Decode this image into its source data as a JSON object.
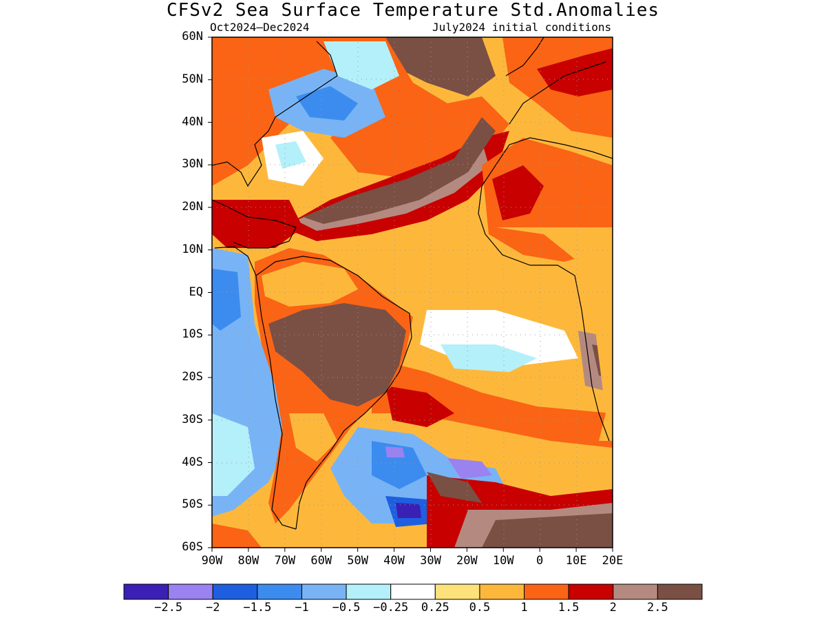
{
  "title": "CFSv2 Sea Surface Temperature Std.Anomalies",
  "subtitle_left": "Oct2024–Dec2024",
  "subtitle_right": "July2024 initial conditions",
  "lat_labels": [
    "60N",
    "50N",
    "40N",
    "30N",
    "20N",
    "10N",
    "EQ",
    "10S",
    "20S",
    "30S",
    "40S",
    "50S",
    "60S"
  ],
  "lon_labels": [
    "90W",
    "80W",
    "70W",
    "60W",
    "50W",
    "40W",
    "30W",
    "20W",
    "10W",
    "0",
    "10E",
    "20E"
  ],
  "colorbar": {
    "colors": [
      "#3a20b4",
      "#9a82f0",
      "#1e5fe0",
      "#3c8cf0",
      "#78b4f5",
      "#b4f0fa",
      "#ffffff",
      "#fde17a",
      "#fdb83c",
      "#fa6414",
      "#c80000",
      "#b48a80",
      "#7a4f44"
    ],
    "labels": [
      "−2.5",
      "−2",
      "−1.5",
      "−1",
      "−0.5",
      "−0.25",
      "0.25",
      "0.5",
      "1",
      "1.5",
      "2",
      "2.5"
    ]
  }
}
